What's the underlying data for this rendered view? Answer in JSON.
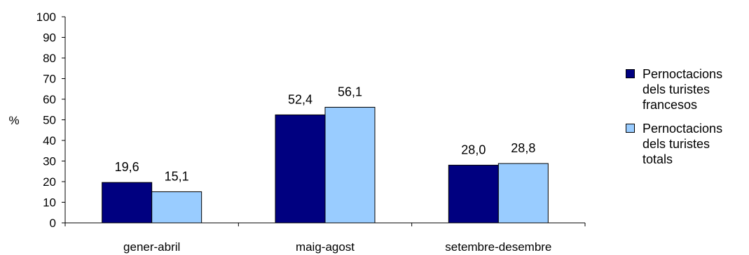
{
  "chart_data": {
    "type": "bar",
    "categories": [
      "gener-abril",
      "maig-agost",
      "setembre-desembre"
    ],
    "series": [
      {
        "name": "Pernoctacions dels turistes francesos",
        "values": [
          19.6,
          52.4,
          28.0
        ],
        "labels": [
          "19,6",
          "52,4",
          "28,0"
        ],
        "color": "#000080"
      },
      {
        "name": "Pernoctacions dels turistes totals",
        "values": [
          15.1,
          56.1,
          28.8
        ],
        "labels": [
          "15,1",
          "56,1",
          "28,8"
        ],
        "color": "#99CCFF"
      }
    ],
    "ylabel": "%",
    "ylim": [
      0,
      100
    ],
    "yticks": [
      "0",
      "10",
      "20",
      "30",
      "40",
      "50",
      "60",
      "70",
      "80",
      "90",
      "100"
    ],
    "grid": false,
    "legend_position": "right"
  }
}
